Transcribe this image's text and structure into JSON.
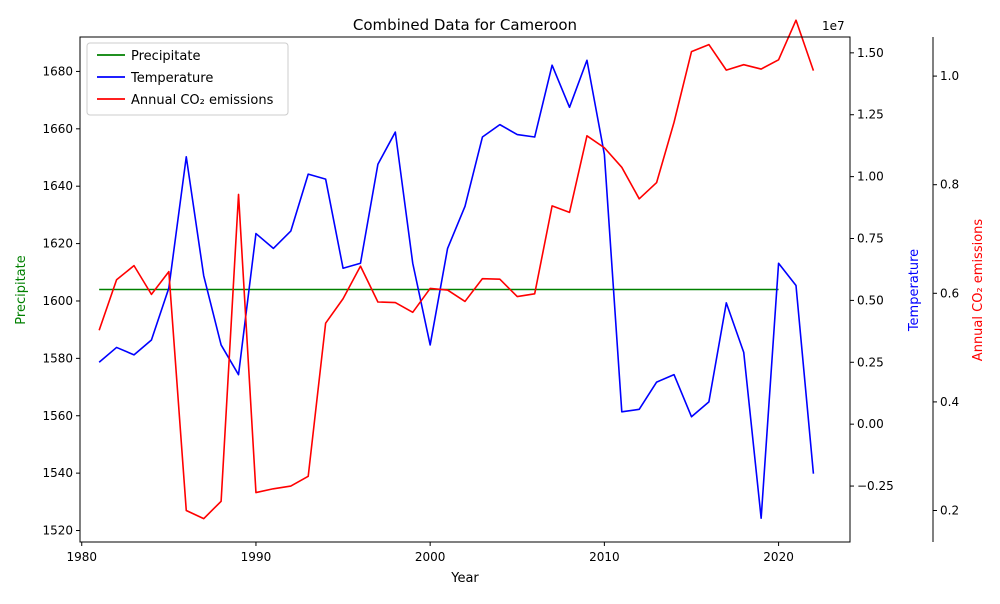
{
  "chart_data": {
    "type": "line",
    "title": "Combined Data for Cameroon",
    "xlabel": "Year",
    "xlim": [
      1979.9,
      2024.1
    ],
    "x_ticks": [
      1980,
      1990,
      2000,
      2010,
      2020
    ],
    "grid": false,
    "legend_position": "top-left",
    "offset_label": "1e7",
    "axes": [
      {
        "id": "precip",
        "label": "Precipitate",
        "color": "#008000",
        "side": "left",
        "ylim": [
          1516,
          1692
        ],
        "ticks": [
          1520,
          1540,
          1560,
          1580,
          1600,
          1620,
          1640,
          1660,
          1680
        ]
      },
      {
        "id": "temp",
        "label": "Temperature",
        "color": "#0000ff",
        "side": "right",
        "ylim": [
          -0.476,
          1.564
        ],
        "ticks": [
          -0.25,
          0.0,
          0.25,
          0.5,
          0.75,
          1.0,
          1.25,
          1.5
        ],
        "tick_labels": [
          "−0.25",
          "0.00",
          "0.25",
          "0.50",
          "0.75",
          "1.00",
          "1.25",
          "1.50"
        ]
      },
      {
        "id": "co2",
        "label": "Annual CO₂ emissions",
        "color": "#ff0000",
        "side": "right-outer",
        "ylim": [
          0.142,
          1.072
        ],
        "ticks": [
          0.2,
          0.4,
          0.6,
          0.8,
          1.0
        ],
        "tick_labels": [
          "0.2",
          "0.4",
          "0.6",
          "0.8",
          "1.0"
        ]
      }
    ],
    "series": [
      {
        "name": "Precipitate",
        "axis": "precip",
        "color": "#008000",
        "x": [
          1981,
          1982,
          1983,
          1984,
          1985,
          1986,
          1987,
          1988,
          1989,
          1990,
          1991,
          1992,
          1993,
          1994,
          1995,
          1996,
          1997,
          1998,
          1999,
          2000,
          2001,
          2002,
          2003,
          2004,
          2005,
          2006,
          2007,
          2008,
          2009,
          2010,
          2011,
          2012,
          2013,
          2014,
          2015,
          2016,
          2017,
          2018,
          2019,
          2020
        ],
        "values": [
          1604,
          1604,
          1604,
          1604,
          1604,
          1604,
          1604,
          1604,
          1604,
          1604,
          1604,
          1604,
          1604,
          1604,
          1604,
          1604,
          1604,
          1604,
          1604,
          1604,
          1604,
          1604,
          1604,
          1604,
          1604,
          1604,
          1604,
          1604,
          1604,
          1604,
          1604,
          1604,
          1604,
          1604,
          1604,
          1604,
          1604,
          1604,
          1604,
          1604
        ]
      },
      {
        "name": "Temperature",
        "axis": "temp",
        "color": "#0000ff",
        "x": [
          1981,
          1982,
          1983,
          1984,
          1985,
          1986,
          1987,
          1988,
          1989,
          1990,
          1991,
          1992,
          1993,
          1994,
          1995,
          1996,
          1997,
          1998,
          1999,
          2000,
          2001,
          2002,
          2003,
          2004,
          2005,
          2006,
          2007,
          2008,
          2009,
          2010,
          2011,
          2012,
          2013,
          2014,
          2015,
          2016,
          2017,
          2018,
          2019,
          2020,
          2021,
          2022
        ],
        "values": [
          0.25,
          0.31,
          0.28,
          0.34,
          0.55,
          1.08,
          0.6,
          0.32,
          0.2,
          0.77,
          0.71,
          0.78,
          1.01,
          0.99,
          0.63,
          0.65,
          1.05,
          1.18,
          0.65,
          0.32,
          0.71,
          0.88,
          1.16,
          1.21,
          1.17,
          1.16,
          1.45,
          1.28,
          1.47,
          1.09,
          0.05,
          0.06,
          0.17,
          0.2,
          0.03,
          0.09,
          0.49,
          0.29,
          -0.38,
          0.65,
          0.56,
          -0.2
        ]
      },
      {
        "name": "Annual CO₂ emissions",
        "axis": "co2",
        "color": "#ff0000",
        "x": [
          1981,
          1982,
          1983,
          1984,
          1985,
          1986,
          1987,
          1988,
          1989,
          1990,
          1991,
          1992,
          1993,
          1994,
          1995,
          1996,
          1997,
          1998,
          1999,
          2000,
          2001,
          2002,
          2003,
          2004,
          2005,
          2006,
          2007,
          2008,
          2009,
          2010,
          2011,
          2012,
          2013,
          2014,
          2015,
          2016,
          2017,
          2018,
          2019,
          2020,
          2021,
          2022
        ],
        "values": [
          0.532,
          0.625,
          0.651,
          0.598,
          0.64,
          0.2,
          0.185,
          0.217,
          0.782,
          0.233,
          0.24,
          0.245,
          0.263,
          0.545,
          0.59,
          0.65,
          0.584,
          0.583,
          0.565,
          0.609,
          0.606,
          0.585,
          0.627,
          0.626,
          0.594,
          0.599,
          0.761,
          0.749,
          0.89,
          0.868,
          0.832,
          0.774,
          0.804,
          0.915,
          1.045,
          1.058,
          1.011,
          1.021,
          1.013,
          1.03,
          1.103,
          1.01
        ]
      }
    ]
  }
}
